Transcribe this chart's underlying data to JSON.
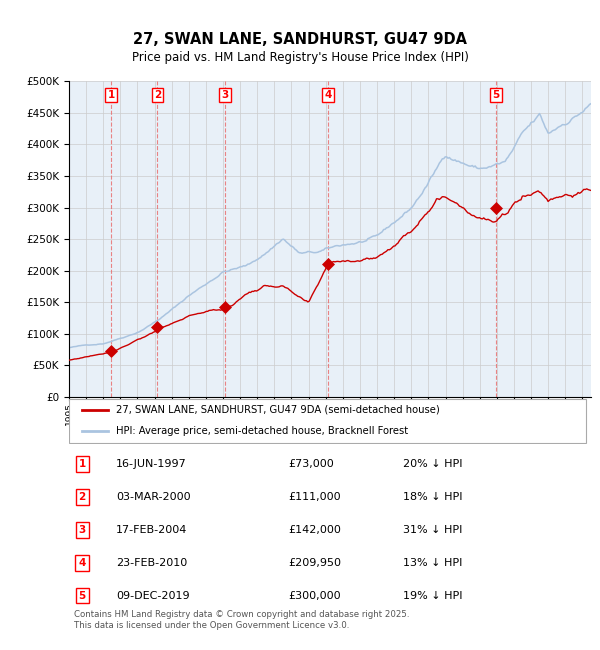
{
  "title": "27, SWAN LANE, SANDHURST, GU47 9DA",
  "subtitle": "Price paid vs. HM Land Registry's House Price Index (HPI)",
  "legend_line1": "27, SWAN LANE, SANDHURST, GU47 9DA (semi-detached house)",
  "legend_line2": "HPI: Average price, semi-detached house, Bracknell Forest",
  "footer": "Contains HM Land Registry data © Crown copyright and database right 2025.\nThis data is licensed under the Open Government Licence v3.0.",
  "transactions": [
    {
      "num": 1,
      "date": "16-JUN-1997",
      "price": 73000,
      "pct": "20%",
      "dir": "↓",
      "x_year": 1997.46
    },
    {
      "num": 2,
      "date": "03-MAR-2000",
      "price": 111000,
      "pct": "18%",
      "dir": "↓",
      "x_year": 2000.17
    },
    {
      "num": 3,
      "date": "17-FEB-2004",
      "price": 142000,
      "pct": "31%",
      "dir": "↓",
      "x_year": 2004.13
    },
    {
      "num": 4,
      "date": "23-FEB-2010",
      "price": 209950,
      "pct": "13%",
      "dir": "↓",
      "x_year": 2010.14
    },
    {
      "num": 5,
      "date": "09-DEC-2019",
      "price": 300000,
      "pct": "19%",
      "dir": "↓",
      "x_year": 2019.93
    }
  ],
  "hpi_color": "#aac4e0",
  "price_color": "#cc0000",
  "marker_color": "#cc0000",
  "vline_color": "#e87070",
  "grid_color": "#cccccc",
  "bg_color": "#e8f0f8",
  "ylim": [
    0,
    500000
  ],
  "xlim_start": 1995.0,
  "xlim_end": 2025.5
}
